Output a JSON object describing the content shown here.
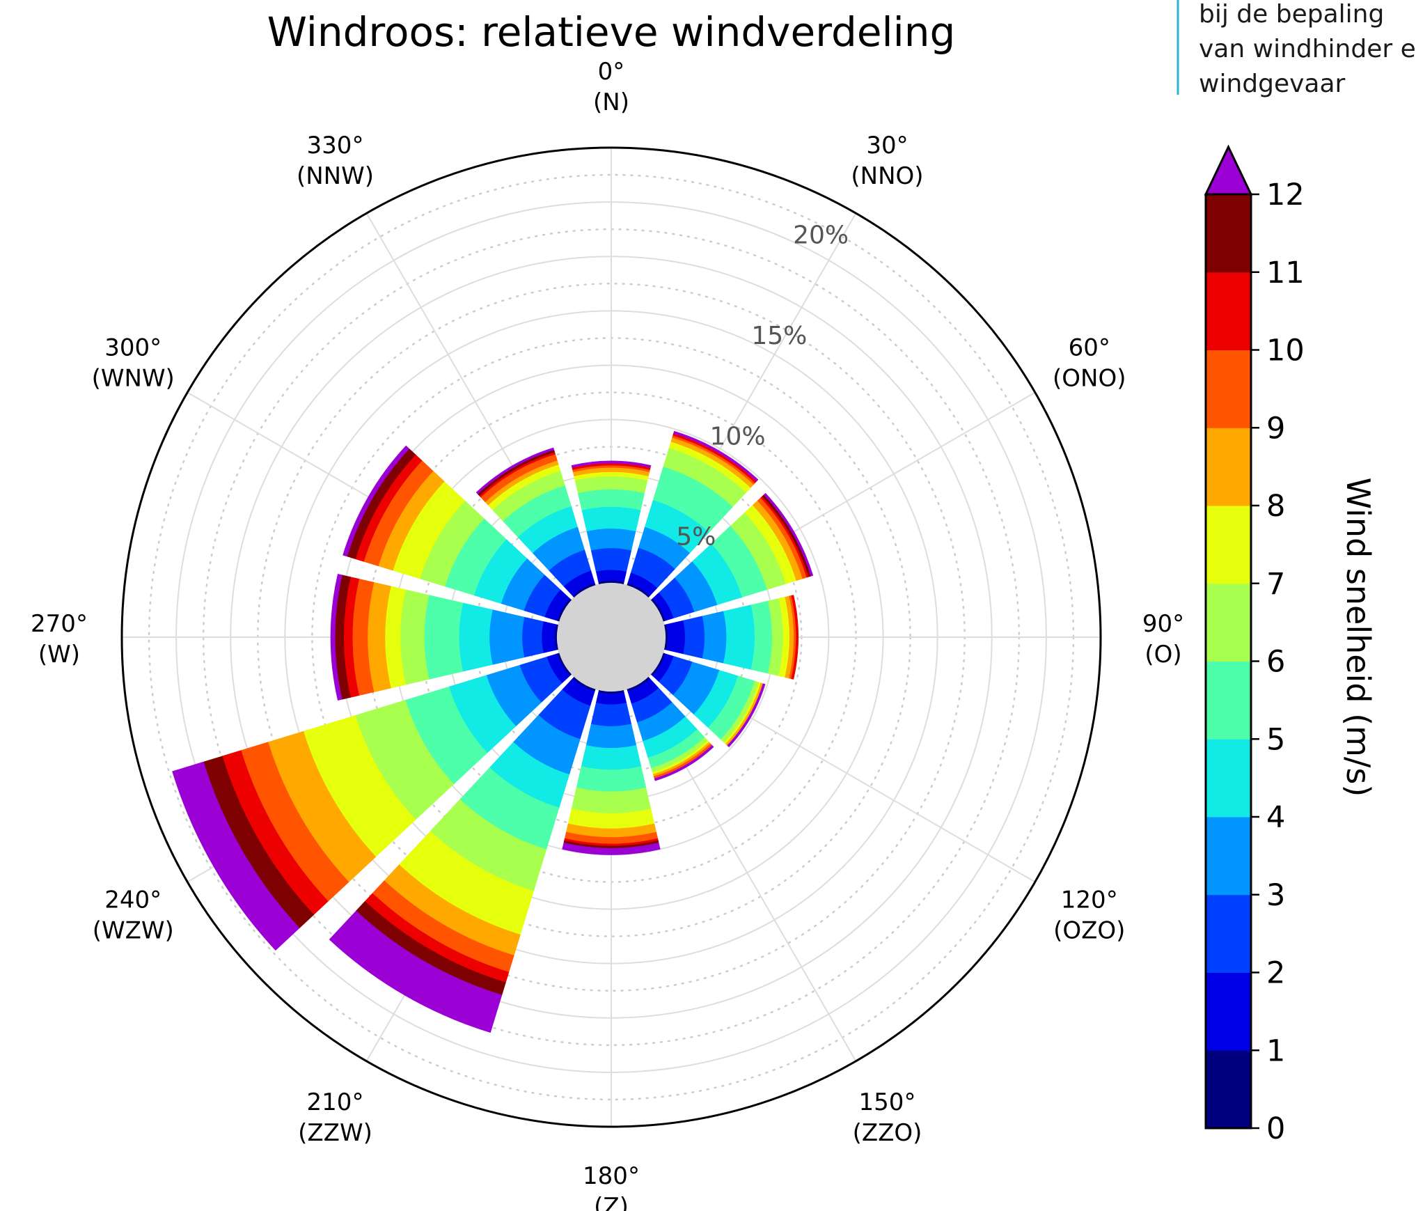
{
  "chart_data": {
    "type": "windrose",
    "title": "Windroos: relatieve windverdeling",
    "unit": "%",
    "radial_ticks": [
      5,
      10,
      15,
      20
    ],
    "radial_tick_labels": [
      "5%",
      "10%",
      "15%",
      "20%"
    ],
    "rmax": 22.5,
    "inner_hole": 2.5,
    "grid": true,
    "direction_labels": [
      {
        "angle": 0,
        "deg": "0°",
        "name": "(N)"
      },
      {
        "angle": 30,
        "deg": "30°",
        "name": "(NNO)"
      },
      {
        "angle": 60,
        "deg": "60°",
        "name": "(ONO)"
      },
      {
        "angle": 90,
        "deg": "90°",
        "name": "(O)"
      },
      {
        "angle": 120,
        "deg": "120°",
        "name": "(OZO)"
      },
      {
        "angle": 150,
        "deg": "150°",
        "name": "(ZZO)"
      },
      {
        "angle": 180,
        "deg": "180°",
        "name": "(Z)"
      },
      {
        "angle": 210,
        "deg": "210°",
        "name": "(ZZW)"
      },
      {
        "angle": 240,
        "deg": "240°",
        "name": "(WZW)"
      },
      {
        "angle": 270,
        "deg": "270°",
        "name": "(W)"
      },
      {
        "angle": 300,
        "deg": "300°",
        "name": "(WNW)"
      },
      {
        "angle": 330,
        "deg": "330°",
        "name": "(NNW)"
      }
    ],
    "speed_bins": [
      "0-1",
      "1-2",
      "2-3",
      "3-4",
      "4-5",
      "5-6",
      "6-7",
      "7-8",
      "8-9",
      "9-10",
      "10-11",
      "11-12",
      ">12"
    ],
    "sectors": [
      {
        "direction": 0,
        "cumulative": [
          2.6,
          3.1,
          4.1,
          5.0,
          6.0,
          6.8,
          7.4,
          7.6,
          7.8,
          7.9,
          8.0,
          8.0,
          8.1
        ]
      },
      {
        "direction": 30,
        "cumulative": [
          2.6,
          3.1,
          4.3,
          5.3,
          6.6,
          8.2,
          9.1,
          9.4,
          9.6,
          9.7,
          9.8,
          9.8,
          9.9
        ]
      },
      {
        "direction": 60,
        "cumulative": [
          2.6,
          3.0,
          4.0,
          5.1,
          6.3,
          7.5,
          8.4,
          8.9,
          9.2,
          9.4,
          9.5,
          9.6,
          9.7
        ]
      },
      {
        "direction": 90,
        "cumulative": [
          2.6,
          3.4,
          4.3,
          5.3,
          6.6,
          7.4,
          7.9,
          8.2,
          8.4,
          8.5,
          8.6,
          8.6,
          8.6
        ]
      },
      {
        "direction": 120,
        "cumulative": [
          2.6,
          3.0,
          3.9,
          5.2,
          6.1,
          6.9,
          7.1,
          7.2,
          7.3,
          7.3,
          7.3,
          7.3,
          7.4
        ]
      },
      {
        "direction": 150,
        "cumulative": [
          2.6,
          3.2,
          4.1,
          5.0,
          5.8,
          6.3,
          6.5,
          6.6,
          6.7,
          6.8,
          6.8,
          6.8,
          6.9
        ]
      },
      {
        "direction": 180,
        "cumulative": [
          2.6,
          3.1,
          4.1,
          5.1,
          6.1,
          7.1,
          8.1,
          8.8,
          9.2,
          9.5,
          9.6,
          9.7,
          10.0
        ]
      },
      {
        "direction": 210,
        "cumulative": [
          2.6,
          3.3,
          4.9,
          6.6,
          8.2,
          10.2,
          12.2,
          14.3,
          15.3,
          16.1,
          16.6,
          17.2,
          19.0
        ]
      },
      {
        "direction": 240,
        "cumulative": [
          2.6,
          3.1,
          4.4,
          6.0,
          7.8,
          9.9,
          12.3,
          14.8,
          16.5,
          17.8,
          18.7,
          19.6,
          21.1
        ]
      },
      {
        "direction": 270,
        "cumulative": [
          2.6,
          3.2,
          4.1,
          5.6,
          7.0,
          8.6,
          9.7,
          10.4,
          11.2,
          11.9,
          12.3,
          12.7,
          12.9
        ]
      },
      {
        "direction": 300,
        "cumulative": [
          2.6,
          3.2,
          4.2,
          5.3,
          6.6,
          8.0,
          9.2,
          10.5,
          11.2,
          11.9,
          12.3,
          12.7,
          12.9
        ]
      },
      {
        "direction": 330,
        "cumulative": [
          2.6,
          3.2,
          4.2,
          5.3,
          6.3,
          7.3,
          8.0,
          8.3,
          8.5,
          8.8,
          8.9,
          9.0,
          9.1
        ]
      }
    ],
    "colorbar": {
      "label": "Wind snelheid (m/s)",
      "ticks": [
        "0",
        "1",
        "2",
        "3",
        "4",
        "5",
        "6",
        "7",
        "8",
        "9",
        "10",
        "11",
        "12"
      ],
      "colors": [
        "#00007f",
        "#0000e6",
        "#0040ff",
        "#0095ff",
        "#11eae5",
        "#4dffaa",
        "#a8ff4e",
        "#e6ff0d",
        "#ffa800",
        "#ff5500",
        "#ec0000",
        "#7f0000"
      ],
      "extend_color": "#9b00d4"
    }
  },
  "side_text": {
    "lines": [
      "bij de bepaling",
      "van windhinder e",
      "windgevaar"
    ],
    "accent": "#29b6d6"
  },
  "colors": {
    "hole": "#d3d3d3",
    "grid": "#dddddd",
    "dotted": "#cccccc"
  }
}
